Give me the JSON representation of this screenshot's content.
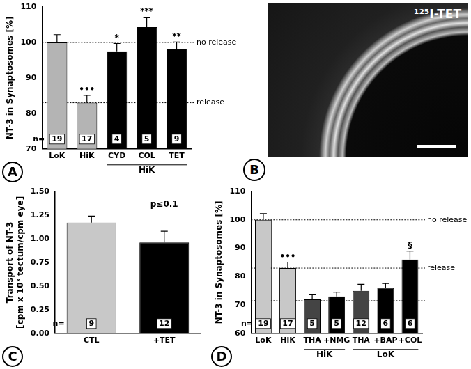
{
  "chart_data": [
    {
      "type": "bar",
      "title": "A",
      "ylabel": "NT-3 in Synaptosomes [%]",
      "categories": [
        "LoK",
        "HiK",
        "CYD",
        "COL",
        "TET"
      ],
      "values": [
        100,
        83,
        97.5,
        104.3,
        98.2
      ],
      "errors": [
        2.2,
        2.1,
        2.2,
        2.7,
        1.9
      ],
      "colors": [
        "#b4b4b4",
        "#b4b4b4",
        "#000000",
        "#000000",
        "#000000"
      ],
      "n_label": "n=",
      "n": [
        19,
        17,
        4,
        5,
        9
      ],
      "significance": [
        null,
        "•••",
        "*",
        "***",
        "**"
      ],
      "groups": [
        {
          "label": "HiK",
          "from": 2,
          "to": 4
        }
      ],
      "reference_lines": [
        {
          "value": 100,
          "label": "no release"
        },
        {
          "value": 83,
          "label": "release"
        }
      ],
      "ylim": [
        70,
        110
      ],
      "yticks": [
        70,
        80,
        90,
        100,
        110
      ]
    },
    {
      "type": "bar",
      "title": "C",
      "ylabel": [
        "Transport of NT-3",
        "[cpm x 10³ tectum/cpm eye]"
      ],
      "categories": [
        "CTL",
        "+TET"
      ],
      "values": [
        1.17,
        0.96
      ],
      "errors": [
        0.07,
        0.12
      ],
      "colors": [
        "#c8c8c8",
        "#000000"
      ],
      "n_label": "n=",
      "n": [
        9,
        12
      ],
      "annotation": "p≤0.1",
      "ylim": [
        0,
        1.5
      ],
      "yticks": [
        {
          "value": 0,
          "label": "0.00"
        },
        {
          "value": 0.25,
          "label": "0.25"
        },
        {
          "value": 0.5,
          "label": "0.50"
        },
        {
          "value": 0.75,
          "label": "0.75"
        },
        {
          "value": 1,
          "label": "1.00"
        },
        {
          "value": 1.25,
          "label": "1.25"
        },
        {
          "value": 1.5,
          "label": "1.50"
        }
      ]
    },
    {
      "type": "bar",
      "title": "D",
      "ylabel": "NT-3 in Synaptosomes [%]",
      "categories": [
        "LoK",
        "HiK",
        "THA",
        "+NMG",
        "THA",
        "+BAP",
        "+COL"
      ],
      "values": [
        100,
        83,
        72,
        73,
        75,
        76,
        86
      ],
      "errors": [
        2.2,
        2.1,
        1.8,
        1.5,
        2.3,
        1.6,
        3
      ],
      "colors": [
        "#c8c8c8",
        "#c8c8c8",
        "#444444",
        "#000000",
        "#444444",
        "#000000",
        "#000000"
      ],
      "n_label": "n=",
      "n": [
        19,
        17,
        5,
        5,
        12,
        6,
        6
      ],
      "significance": [
        null,
        "•••",
        null,
        null,
        null,
        null,
        "§"
      ],
      "groups": [
        {
          "label": "HiK",
          "from": 2,
          "to": 3
        },
        {
          "label": "LoK",
          "from": 4,
          "to": 6
        }
      ],
      "reference_lines": [
        {
          "value": 100,
          "label": "no release"
        },
        {
          "value": 83,
          "label": "release"
        },
        {
          "value": 71.5
        }
      ],
      "ylim": [
        60,
        110
      ],
      "yticks": [
        60,
        70,
        80,
        90,
        100,
        110
      ]
    }
  ],
  "image_panel": {
    "title": "B",
    "label": "¹²⁵I-TET"
  }
}
